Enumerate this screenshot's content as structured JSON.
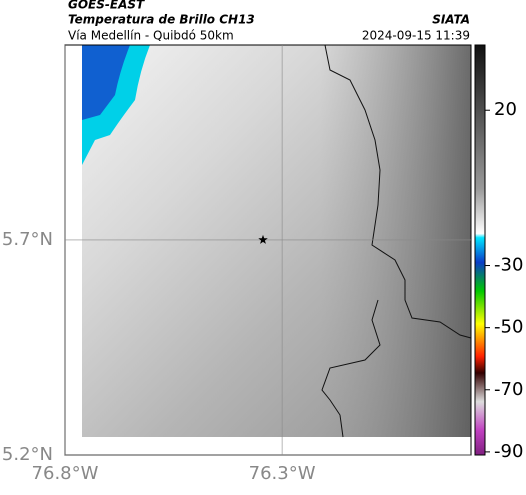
{
  "header": {
    "title": "GOES-EAST",
    "subtitle": "Temperatura de Brillo CH13",
    "source": "SIATA",
    "location": "Vía Medellín - Quibdó 50km",
    "datetime": "2024-09-15 11:39"
  },
  "map": {
    "xlim": [
      -76.8,
      -75.865
    ],
    "ylim": [
      5.2,
      6.153
    ],
    "xticks": [
      {
        "value": -76.8,
        "label": "76.8°W"
      },
      {
        "value": -76.3,
        "label": "76.3°W"
      }
    ],
    "yticks": [
      {
        "value": 5.2,
        "label": "5.2°N"
      },
      {
        "value": 5.7,
        "label": "5.7°N"
      }
    ],
    "marker": {
      "lon": -76.344,
      "lat": 5.7
    },
    "grid": true
  },
  "colorbar": {
    "lim": [
      -91,
      41
    ],
    "ticks": [
      20,
      -30,
      -50,
      -70,
      -90
    ]
  }
}
